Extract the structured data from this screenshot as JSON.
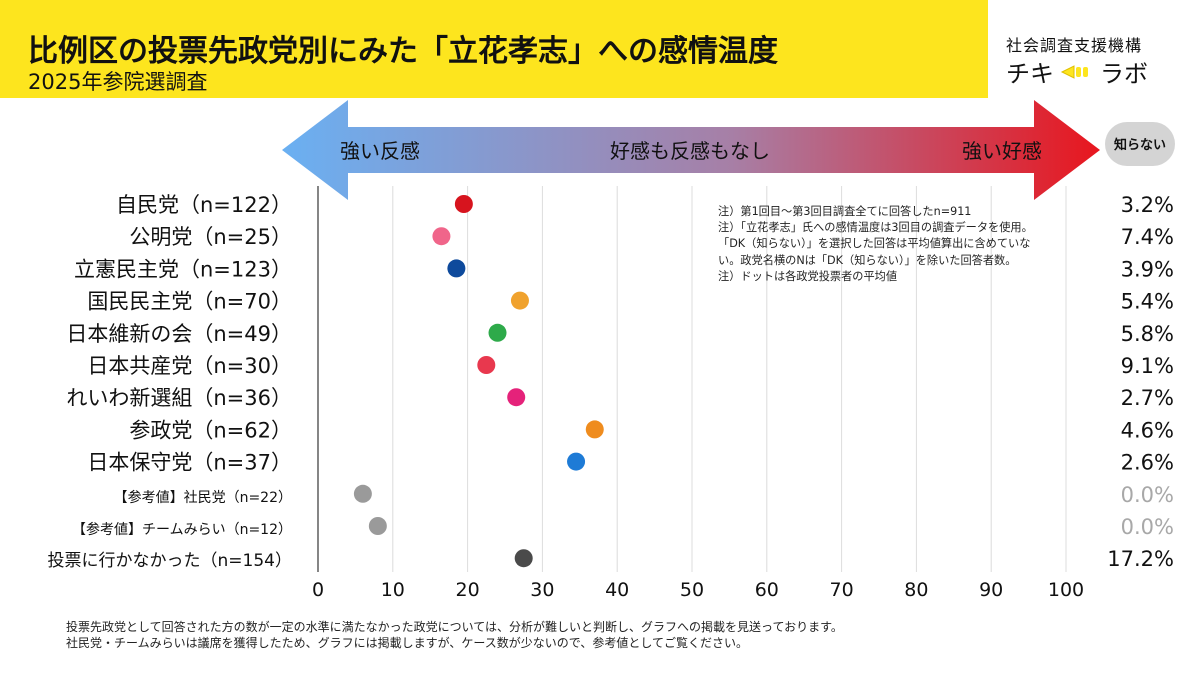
{
  "header": {
    "title": "比例区の投票先政党別にみた「立花孝志」への感情温度",
    "subtitle": "2025年参院選調査"
  },
  "brand": {
    "org": "社会調査支援機構",
    "logo_left": "チキ",
    "logo_right": "ラボ"
  },
  "scale_labels": {
    "left": "強い反感",
    "center": "好感も反感もなし",
    "right": "強い好感",
    "dk_badge": "知らない"
  },
  "notes": [
    "注）第1回目〜第3回目調査全てに回答したn=911",
    "注）「立花孝志」氏への感情温度は3回目の調査データを使用。",
    "「DK（知らない）」を選択した回答は平均値算出に含めていな",
    "い。政党名横のNは「DK（知らない）」を除いた回答者数。",
    "注）ドットは各政党投票者の平均値"
  ],
  "footnotes": [
    "投票先政党として回答された方の数が一定の水準に満たなかった政党については、分析が難しいと判断し、グラフへの掲載を見送っております。",
    "社民党・チームみらいは議席を獲得したため、グラフには掲載しますが、ケース数が少ないので、参考値としてご覧ください。"
  ],
  "chart_data": {
    "type": "scatter",
    "xlim": [
      0,
      100
    ],
    "x_ticks": [
      0,
      10,
      20,
      30,
      40,
      50,
      60,
      70,
      80,
      90,
      100
    ],
    "grid": "vertical",
    "colors": {
      "ldp": "#d7141e",
      "komei": "#f0658a",
      "cdp": "#0e4a9c",
      "dpfp": "#f0a22e",
      "ishin": "#2eaa4a",
      "jcp": "#e8384e",
      "reiwa": "#e5227a",
      "sanseito": "#ef8c1e",
      "hoshu": "#1e7bd6",
      "sdp": "#9a9a9a",
      "mirai": "#9a9a9a",
      "nonvoter": "#4a4a4a",
      "gradient_left": "#6ab0f2",
      "gradient_right": "#e8161e"
    },
    "rows": [
      {
        "label": "自民党（n=122）",
        "value": 19.5,
        "dk": "3.2%",
        "color": "#d7141e",
        "reference": false,
        "nonvoter": false
      },
      {
        "label": "公明党（n=25）",
        "value": 16.5,
        "dk": "7.4%",
        "color": "#f0658a",
        "reference": false,
        "nonvoter": false
      },
      {
        "label": "立憲民主党（n=123）",
        "value": 18.5,
        "dk": "3.9%",
        "color": "#0e4a9c",
        "reference": false,
        "nonvoter": false
      },
      {
        "label": "国民民主党（n=70）",
        "value": 27.0,
        "dk": "5.4%",
        "color": "#f0a22e",
        "reference": false,
        "nonvoter": false
      },
      {
        "label": "日本維新の会（n=49）",
        "value": 24.0,
        "dk": "5.8%",
        "color": "#2eaa4a",
        "reference": false,
        "nonvoter": false
      },
      {
        "label": "日本共産党（n=30）",
        "value": 22.5,
        "dk": "9.1%",
        "color": "#e8384e",
        "reference": false,
        "nonvoter": false
      },
      {
        "label": "れいわ新選組（n=36）",
        "value": 26.5,
        "dk": "2.7%",
        "color": "#e5227a",
        "reference": false,
        "nonvoter": false
      },
      {
        "label": "参政党（n=62）",
        "value": 37.0,
        "dk": "4.6%",
        "color": "#ef8c1e",
        "reference": false,
        "nonvoter": false
      },
      {
        "label": "日本保守党（n=37）",
        "value": 34.5,
        "dk": "2.6%",
        "color": "#1e7bd6",
        "reference": false,
        "nonvoter": false
      },
      {
        "label": "【参考値】社民党（n=22）",
        "value": 6.0,
        "dk": "0.0%",
        "color": "#9a9a9a",
        "reference": true,
        "nonvoter": false
      },
      {
        "label": "【参考値】チームみらい（n=12）",
        "value": 8.0,
        "dk": "0.0%",
        "color": "#9a9a9a",
        "reference": true,
        "nonvoter": false
      },
      {
        "label": "投票に行かなかった（n=154）",
        "value": 27.5,
        "dk": "17.2%",
        "color": "#4a4a4a",
        "reference": false,
        "nonvoter": true
      }
    ]
  }
}
